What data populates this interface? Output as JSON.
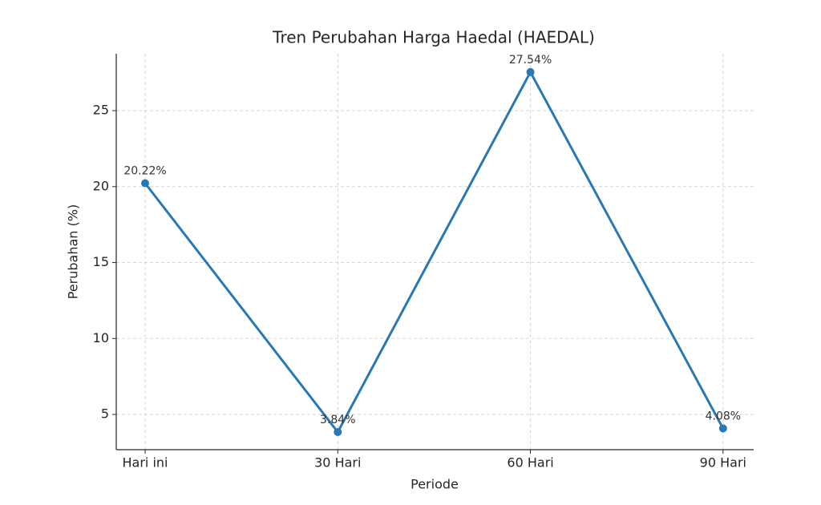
{
  "chart_data": {
    "type": "line",
    "title": "Tren Perubahan Harga Haedal (HAEDAL)",
    "x_label": "Periode",
    "y_label": "Perubahan (%)",
    "categories": [
      "Hari ini",
      "30 Hari",
      "60 Hari",
      "90 Hari"
    ],
    "series": [
      {
        "name": "HAEDAL",
        "color": "#2878b5",
        "values": [
          20.22,
          3.84,
          27.54,
          4.08
        ],
        "value_labels": [
          "20.22%",
          "3.84%",
          "27.54%",
          "4.08%"
        ]
      }
    ],
    "ylim": [
      2.68,
      28.75
    ],
    "yticks": [
      5,
      10,
      15,
      20,
      25
    ],
    "grid": true
  }
}
